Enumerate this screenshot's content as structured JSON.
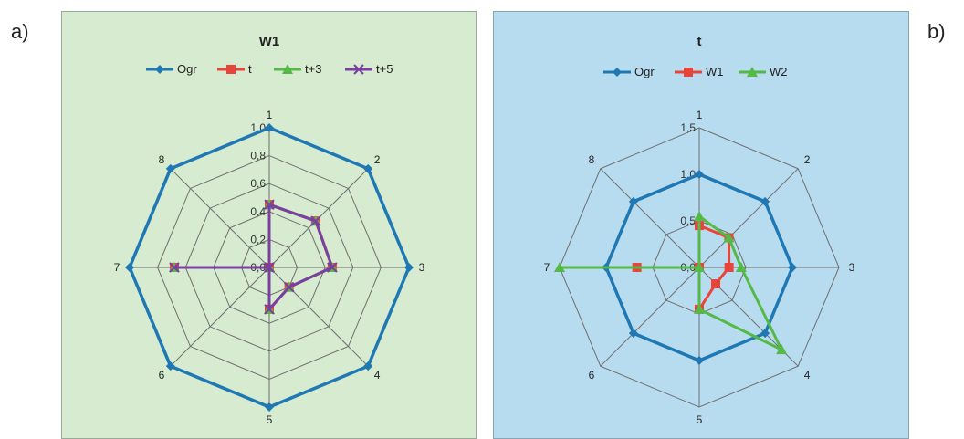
{
  "figure_labels": {
    "a": "a)",
    "b": "b)"
  },
  "colors": {
    "ogr": "#1f78b4",
    "red": "#e8443a",
    "green": "#55b948",
    "purple": "#7a3fa0"
  },
  "chart_data": [
    {
      "type": "radar",
      "title": "W1",
      "categories": [
        "1",
        "2",
        "3",
        "4",
        "5",
        "6",
        "7",
        "8"
      ],
      "rmax": 1.0,
      "ticks": [
        "0,0",
        "0,2",
        "0,4",
        "0,6",
        "0,8",
        "1,0"
      ],
      "tick_values": [
        0,
        0.2,
        0.4,
        0.6,
        0.8,
        1.0
      ],
      "legend_position": "top",
      "series": [
        {
          "name": "Ogr",
          "color": "#1f78b4",
          "marker": "diamond",
          "values": [
            1,
            1,
            1,
            1,
            1,
            1,
            1,
            1
          ]
        },
        {
          "name": "t",
          "color": "#e8443a",
          "marker": "square",
          "values": [
            0.45,
            0.47,
            0.45,
            0.2,
            0.3,
            0,
            0.68,
            0
          ]
        },
        {
          "name": "t+3",
          "color": "#55b948",
          "marker": "triangle",
          "values": [
            0.45,
            0.47,
            0.45,
            0.2,
            0.3,
            0,
            0.68,
            0
          ]
        },
        {
          "name": "t+5",
          "color": "#7a3fa0",
          "marker": "x",
          "values": [
            0.45,
            0.47,
            0.45,
            0.2,
            0.3,
            0,
            0.68,
            0
          ]
        }
      ]
    },
    {
      "type": "radar",
      "title": "t",
      "categories": [
        "1",
        "2",
        "3",
        "4",
        "5",
        "6",
        "7",
        "8"
      ],
      "rmax": 1.5,
      "ticks": [
        "0,0",
        "0,5",
        "1,0",
        "1,5"
      ],
      "tick_values": [
        0,
        0.5,
        1.0,
        1.5
      ],
      "legend_position": "top",
      "series": [
        {
          "name": "Ogr",
          "color": "#1f78b4",
          "marker": "diamond",
          "values": [
            1,
            1,
            1,
            1,
            1,
            1,
            1,
            1
          ]
        },
        {
          "name": "W1",
          "color": "#e8443a",
          "marker": "square",
          "values": [
            0.45,
            0.45,
            0.32,
            0.25,
            0.45,
            0,
            0.67,
            0
          ]
        },
        {
          "name": "W2",
          "color": "#55b948",
          "marker": "triangle",
          "values": [
            0.55,
            0.45,
            0.45,
            1.25,
            0.45,
            0,
            1.5,
            0
          ]
        }
      ]
    }
  ]
}
